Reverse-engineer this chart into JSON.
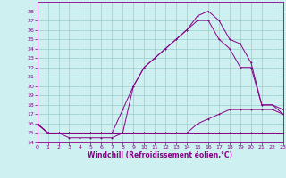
{
  "xlabel": "Windchill (Refroidissement éolien,°C)",
  "xlim": [
    0,
    23
  ],
  "ylim": [
    14,
    29
  ],
  "yticks": [
    14,
    15,
    16,
    17,
    18,
    19,
    20,
    21,
    22,
    23,
    24,
    25,
    26,
    27,
    28
  ],
  "xticks": [
    0,
    1,
    2,
    3,
    4,
    5,
    6,
    7,
    8,
    9,
    10,
    11,
    12,
    13,
    14,
    15,
    16,
    17,
    18,
    19,
    20,
    21,
    22,
    23
  ],
  "bg_color": "#cff0f0",
  "line_color": "#880088",
  "grid_color": "#99cccc",
  "line1_x": [
    0,
    1,
    2,
    3,
    4,
    5,
    6,
    7,
    8,
    9,
    10,
    11,
    12,
    13,
    14,
    15,
    16,
    17,
    18,
    19,
    20,
    21,
    22,
    23
  ],
  "line1_y": [
    16,
    15,
    15,
    14.5,
    14.5,
    14.5,
    14.5,
    14.5,
    15,
    15,
    15,
    15,
    15,
    15,
    15,
    15,
    15,
    15,
    15,
    15,
    15,
    15,
    15,
    15
  ],
  "line2_x": [
    0,
    1,
    2,
    3,
    4,
    5,
    6,
    7,
    8,
    9,
    10,
    11,
    12,
    13,
    14,
    15,
    16,
    17,
    18,
    19,
    20,
    21,
    22,
    23
  ],
  "line2_y": [
    16,
    15,
    15,
    15,
    15,
    15,
    15,
    15,
    15,
    15,
    15,
    15,
    15,
    15,
    15,
    16,
    16.5,
    17,
    17.5,
    17.5,
    17.5,
    17.5,
    17.5,
    17
  ],
  "line3_x": [
    0,
    1,
    2,
    3,
    4,
    5,
    6,
    7,
    8,
    9,
    10,
    11,
    12,
    13,
    14,
    15,
    16,
    17,
    18,
    19,
    20,
    21,
    22,
    23
  ],
  "line3_y": [
    16,
    15,
    15,
    15,
    15,
    15,
    15,
    15,
    17.5,
    20,
    22,
    23,
    24,
    25,
    26,
    27.5,
    28,
    27,
    25,
    24.5,
    22.5,
    18,
    18,
    17.5
  ],
  "line4_x": [
    0,
    1,
    2,
    3,
    4,
    5,
    6,
    7,
    8,
    9,
    10,
    11,
    12,
    13,
    14,
    15,
    16,
    17,
    18,
    19,
    20,
    21,
    22,
    23
  ],
  "line4_y": [
    16,
    15,
    15,
    15,
    15,
    15,
    15,
    15,
    15,
    20,
    22,
    23,
    24,
    25,
    26,
    27,
    27,
    25,
    24,
    22,
    22,
    18,
    18,
    17
  ]
}
